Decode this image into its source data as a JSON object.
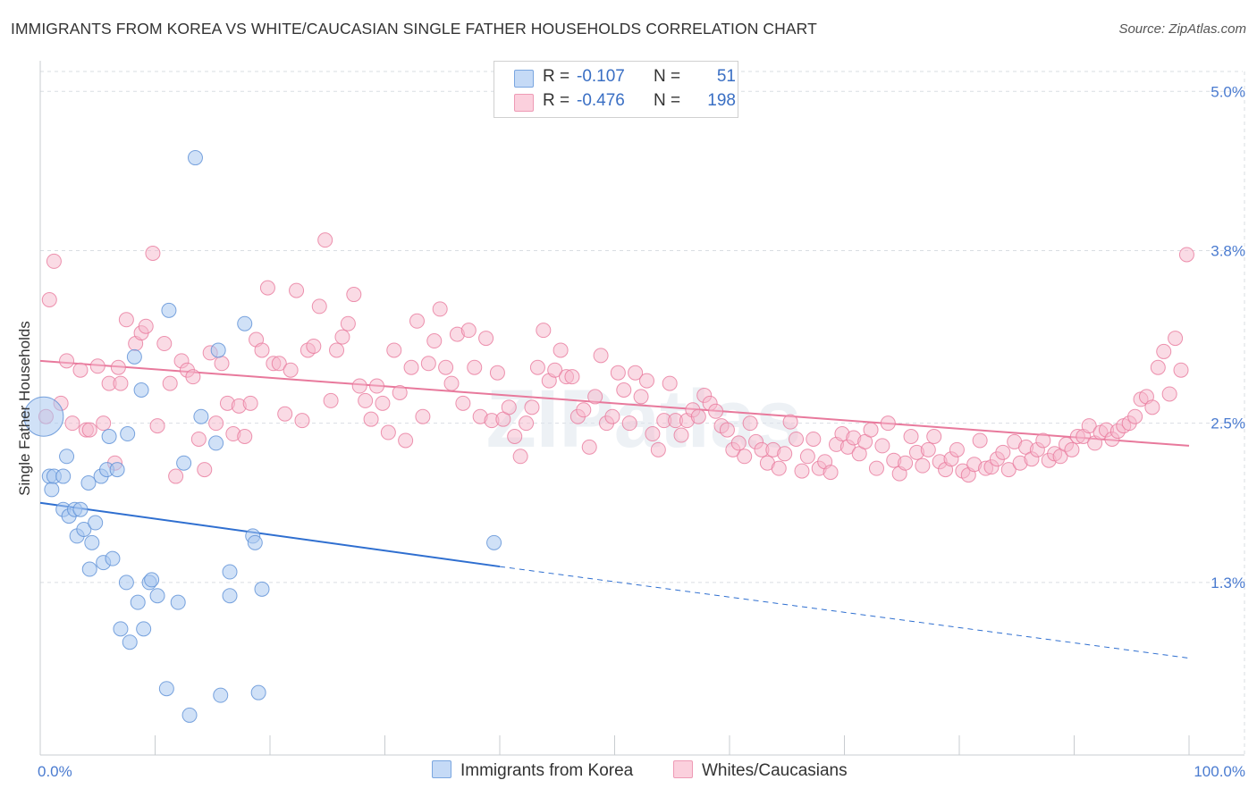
{
  "title": "IMMIGRANTS FROM KOREA VS WHITE/CAUCASIAN SINGLE FATHER HOUSEHOLDS CORRELATION CHART",
  "source": "Source: ZipAtlas.com",
  "watermark": "ZIPatlas",
  "legend": {
    "rows": [
      {
        "r_label": "R =",
        "r_value": "-0.107",
        "n_label": "N =",
        "n_value": "51",
        "color": "#a9c8f0"
      },
      {
        "r_label": "R =",
        "r_value": "-0.476",
        "n_label": "N =",
        "n_value": "198",
        "color": "#f6b8cb"
      }
    ]
  },
  "chart_data": {
    "type": "scatter",
    "xlabel": "",
    "ylabel": "Single Father Households",
    "xlim": [
      0,
      100
    ],
    "ylim": [
      0,
      5.15
    ],
    "x_tick_labels": [
      "0.0%",
      "100.0%"
    ],
    "y_ticks": [
      1.3,
      2.5,
      3.8,
      5.0
    ],
    "y_tick_labels": [
      "1.3%",
      "2.5%",
      "3.8%",
      "5.0%"
    ],
    "grid": true,
    "legend_placement": "bottom-center",
    "series": [
      {
        "name": "Immigrants from Korea",
        "color": "#a9c8f0",
        "stroke": "#5b8fd6",
        "trend": {
          "x0": 0,
          "y0": 1.9,
          "x1": 40,
          "y1": 1.42,
          "x_extend": 100,
          "y_extend": 0.73,
          "color": "#2f6fd0"
        },
        "points": [
          [
            0.3,
            2.55
          ],
          [
            0.8,
            2.1
          ],
          [
            1.0,
            2.0
          ],
          [
            1.2,
            2.1
          ],
          [
            2.0,
            2.1
          ],
          [
            2.0,
            1.85
          ],
          [
            2.3,
            2.25
          ],
          [
            2.5,
            1.8
          ],
          [
            3.0,
            1.85
          ],
          [
            3.2,
            1.65
          ],
          [
            3.5,
            1.85
          ],
          [
            3.8,
            1.7
          ],
          [
            4.2,
            2.05
          ],
          [
            4.3,
            1.4
          ],
          [
            4.5,
            1.6
          ],
          [
            4.8,
            1.75
          ],
          [
            5.3,
            2.1
          ],
          [
            5.5,
            1.45
          ],
          [
            5.8,
            2.15
          ],
          [
            6.0,
            2.4
          ],
          [
            6.3,
            1.48
          ],
          [
            6.7,
            2.15
          ],
          [
            7.0,
            0.95
          ],
          [
            7.5,
            1.3
          ],
          [
            7.6,
            2.42
          ],
          [
            7.8,
            0.85
          ],
          [
            8.2,
            3.0
          ],
          [
            8.5,
            1.15
          ],
          [
            8.8,
            2.75
          ],
          [
            9.0,
            0.95
          ],
          [
            9.5,
            1.3
          ],
          [
            9.7,
            1.32
          ],
          [
            10.2,
            1.2
          ],
          [
            11.0,
            0.5
          ],
          [
            11.2,
            3.35
          ],
          [
            12.0,
            1.15
          ],
          [
            12.5,
            2.2
          ],
          [
            13.0,
            0.3
          ],
          [
            13.5,
            4.5
          ],
          [
            14.0,
            2.55
          ],
          [
            15.3,
            2.35
          ],
          [
            15.5,
            3.05
          ],
          [
            15.7,
            0.45
          ],
          [
            16.5,
            1.38
          ],
          [
            16.5,
            1.2
          ],
          [
            17.8,
            3.25
          ],
          [
            18.5,
            1.65
          ],
          [
            18.7,
            1.6
          ],
          [
            19.0,
            0.47
          ],
          [
            19.3,
            1.25
          ],
          [
            39.5,
            1.6
          ]
        ]
      },
      {
        "name": "Whites/Caucasians",
        "color": "#f6b8cb",
        "stroke": "#e8799c",
        "trend": {
          "x0": 0,
          "y0": 2.97,
          "x1": 100,
          "y1": 2.33,
          "color": "#e8799c"
        },
        "points": [
          [
            0.5,
            2.55
          ],
          [
            0.8,
            3.43
          ],
          [
            1.2,
            3.72
          ],
          [
            1.8,
            2.65
          ],
          [
            2.3,
            2.97
          ],
          [
            2.8,
            2.5
          ],
          [
            3.5,
            2.9
          ],
          [
            4.0,
            2.45
          ],
          [
            4.3,
            2.45
          ],
          [
            5.0,
            2.93
          ],
          [
            5.5,
            2.5
          ],
          [
            6.0,
            2.8
          ],
          [
            6.5,
            2.2
          ],
          [
            6.8,
            2.92
          ],
          [
            7.0,
            2.8
          ],
          [
            7.5,
            3.28
          ],
          [
            8.3,
            3.1
          ],
          [
            8.8,
            3.18
          ],
          [
            9.2,
            3.23
          ],
          [
            9.8,
            3.78
          ],
          [
            10.2,
            2.48
          ],
          [
            10.8,
            3.1
          ],
          [
            11.3,
            2.8
          ],
          [
            11.8,
            2.1
          ],
          [
            12.3,
            2.97
          ],
          [
            12.8,
            2.9
          ],
          [
            13.3,
            2.85
          ],
          [
            13.8,
            2.38
          ],
          [
            14.3,
            2.15
          ],
          [
            14.8,
            3.03
          ],
          [
            15.3,
            2.5
          ],
          [
            15.8,
            2.95
          ],
          [
            16.3,
            2.65
          ],
          [
            16.8,
            2.42
          ],
          [
            17.3,
            2.63
          ],
          [
            17.8,
            2.4
          ],
          [
            18.3,
            2.65
          ],
          [
            18.8,
            3.13
          ],
          [
            19.3,
            3.05
          ],
          [
            19.8,
            3.52
          ],
          [
            20.3,
            2.95
          ],
          [
            20.8,
            2.95
          ],
          [
            21.3,
            2.57
          ],
          [
            21.8,
            2.9
          ],
          [
            22.3,
            3.5
          ],
          [
            22.8,
            2.52
          ],
          [
            23.3,
            3.05
          ],
          [
            23.8,
            3.08
          ],
          [
            24.3,
            3.38
          ],
          [
            24.8,
            3.88
          ],
          [
            25.3,
            2.67
          ],
          [
            25.8,
            3.05
          ],
          [
            26.3,
            3.15
          ],
          [
            26.8,
            3.25
          ],
          [
            27.3,
            3.47
          ],
          [
            27.8,
            2.78
          ],
          [
            28.3,
            2.67
          ],
          [
            28.8,
            2.53
          ],
          [
            29.3,
            2.78
          ],
          [
            29.8,
            2.65
          ],
          [
            30.3,
            2.43
          ],
          [
            30.8,
            3.05
          ],
          [
            31.3,
            2.73
          ],
          [
            31.8,
            2.37
          ],
          [
            32.3,
            2.92
          ],
          [
            32.8,
            3.27
          ],
          [
            33.3,
            2.55
          ],
          [
            33.8,
            2.95
          ],
          [
            34.3,
            3.12
          ],
          [
            34.8,
            3.36
          ],
          [
            35.3,
            2.92
          ],
          [
            35.8,
            2.8
          ],
          [
            36.3,
            3.17
          ],
          [
            36.8,
            2.65
          ],
          [
            37.3,
            3.2
          ],
          [
            37.8,
            2.92
          ],
          [
            38.3,
            2.55
          ],
          [
            38.8,
            3.14
          ],
          [
            39.3,
            2.52
          ],
          [
            39.8,
            2.88
          ],
          [
            40.3,
            2.53
          ],
          [
            40.8,
            2.62
          ],
          [
            41.3,
            2.4
          ],
          [
            41.8,
            2.25
          ],
          [
            42.3,
            2.5
          ],
          [
            42.8,
            2.62
          ],
          [
            43.3,
            2.92
          ],
          [
            43.8,
            3.2
          ],
          [
            44.3,
            2.82
          ],
          [
            44.8,
            2.9
          ],
          [
            45.3,
            3.05
          ],
          [
            45.8,
            2.85
          ],
          [
            46.3,
            2.85
          ],
          [
            46.8,
            2.55
          ],
          [
            47.3,
            2.6
          ],
          [
            47.8,
            2.32
          ],
          [
            48.3,
            2.7
          ],
          [
            48.8,
            3.01
          ],
          [
            49.3,
            2.5
          ],
          [
            49.8,
            2.55
          ],
          [
            50.3,
            2.88
          ],
          [
            50.8,
            2.75
          ],
          [
            51.3,
            2.5
          ],
          [
            51.8,
            2.88
          ],
          [
            52.3,
            2.7
          ],
          [
            52.8,
            2.82
          ],
          [
            53.3,
            2.42
          ],
          [
            53.8,
            2.3
          ],
          [
            54.3,
            2.52
          ],
          [
            54.8,
            2.8
          ],
          [
            55.3,
            2.52
          ],
          [
            55.8,
            2.41
          ],
          [
            56.3,
            2.52
          ],
          [
            56.8,
            2.6
          ],
          [
            57.3,
            2.55
          ],
          [
            57.8,
            2.71
          ],
          [
            58.3,
            2.65
          ],
          [
            58.8,
            2.59
          ],
          [
            59.3,
            2.48
          ],
          [
            59.8,
            2.45
          ],
          [
            60.3,
            2.3
          ],
          [
            60.8,
            2.35
          ],
          [
            61.3,
            2.25
          ],
          [
            61.8,
            2.5
          ],
          [
            62.3,
            2.36
          ],
          [
            62.8,
            2.3
          ],
          [
            63.3,
            2.2
          ],
          [
            63.8,
            2.3
          ],
          [
            64.3,
            2.16
          ],
          [
            64.8,
            2.27
          ],
          [
            65.3,
            2.51
          ],
          [
            65.8,
            2.38
          ],
          [
            66.3,
            2.14
          ],
          [
            66.8,
            2.25
          ],
          [
            67.3,
            2.38
          ],
          [
            67.8,
            2.16
          ],
          [
            68.3,
            2.21
          ],
          [
            68.8,
            2.13
          ],
          [
            69.3,
            2.34
          ],
          [
            69.8,
            2.42
          ],
          [
            70.3,
            2.32
          ],
          [
            70.8,
            2.39
          ],
          [
            71.3,
            2.27
          ],
          [
            71.8,
            2.36
          ],
          [
            72.3,
            2.45
          ],
          [
            72.8,
            2.16
          ],
          [
            73.3,
            2.33
          ],
          [
            73.8,
            2.5
          ],
          [
            74.3,
            2.22
          ],
          [
            74.8,
            2.12
          ],
          [
            75.3,
            2.2
          ],
          [
            75.8,
            2.4
          ],
          [
            76.3,
            2.28
          ],
          [
            76.8,
            2.18
          ],
          [
            77.3,
            2.3
          ],
          [
            77.8,
            2.4
          ],
          [
            78.3,
            2.21
          ],
          [
            78.8,
            2.15
          ],
          [
            79.3,
            2.23
          ],
          [
            79.8,
            2.3
          ],
          [
            80.3,
            2.14
          ],
          [
            80.8,
            2.11
          ],
          [
            81.3,
            2.19
          ],
          [
            81.8,
            2.37
          ],
          [
            82.3,
            2.16
          ],
          [
            82.8,
            2.17
          ],
          [
            83.3,
            2.23
          ],
          [
            83.8,
            2.28
          ],
          [
            84.3,
            2.15
          ],
          [
            84.8,
            2.36
          ],
          [
            85.3,
            2.2
          ],
          [
            85.8,
            2.32
          ],
          [
            86.3,
            2.23
          ],
          [
            86.8,
            2.3
          ],
          [
            87.3,
            2.37
          ],
          [
            87.8,
            2.22
          ],
          [
            88.3,
            2.27
          ],
          [
            88.8,
            2.25
          ],
          [
            89.3,
            2.34
          ],
          [
            89.8,
            2.3
          ],
          [
            90.3,
            2.4
          ],
          [
            90.8,
            2.4
          ],
          [
            91.3,
            2.48
          ],
          [
            91.8,
            2.35
          ],
          [
            92.3,
            2.43
          ],
          [
            92.8,
            2.45
          ],
          [
            93.3,
            2.38
          ],
          [
            93.8,
            2.44
          ],
          [
            94.3,
            2.48
          ],
          [
            94.8,
            2.5
          ],
          [
            95.3,
            2.55
          ],
          [
            95.8,
            2.68
          ],
          [
            96.3,
            2.7
          ],
          [
            96.8,
            2.62
          ],
          [
            97.3,
            2.92
          ],
          [
            97.8,
            3.04
          ],
          [
            98.3,
            2.72
          ],
          [
            98.8,
            3.14
          ],
          [
            99.3,
            2.9
          ],
          [
            99.8,
            3.77
          ]
        ]
      }
    ]
  }
}
